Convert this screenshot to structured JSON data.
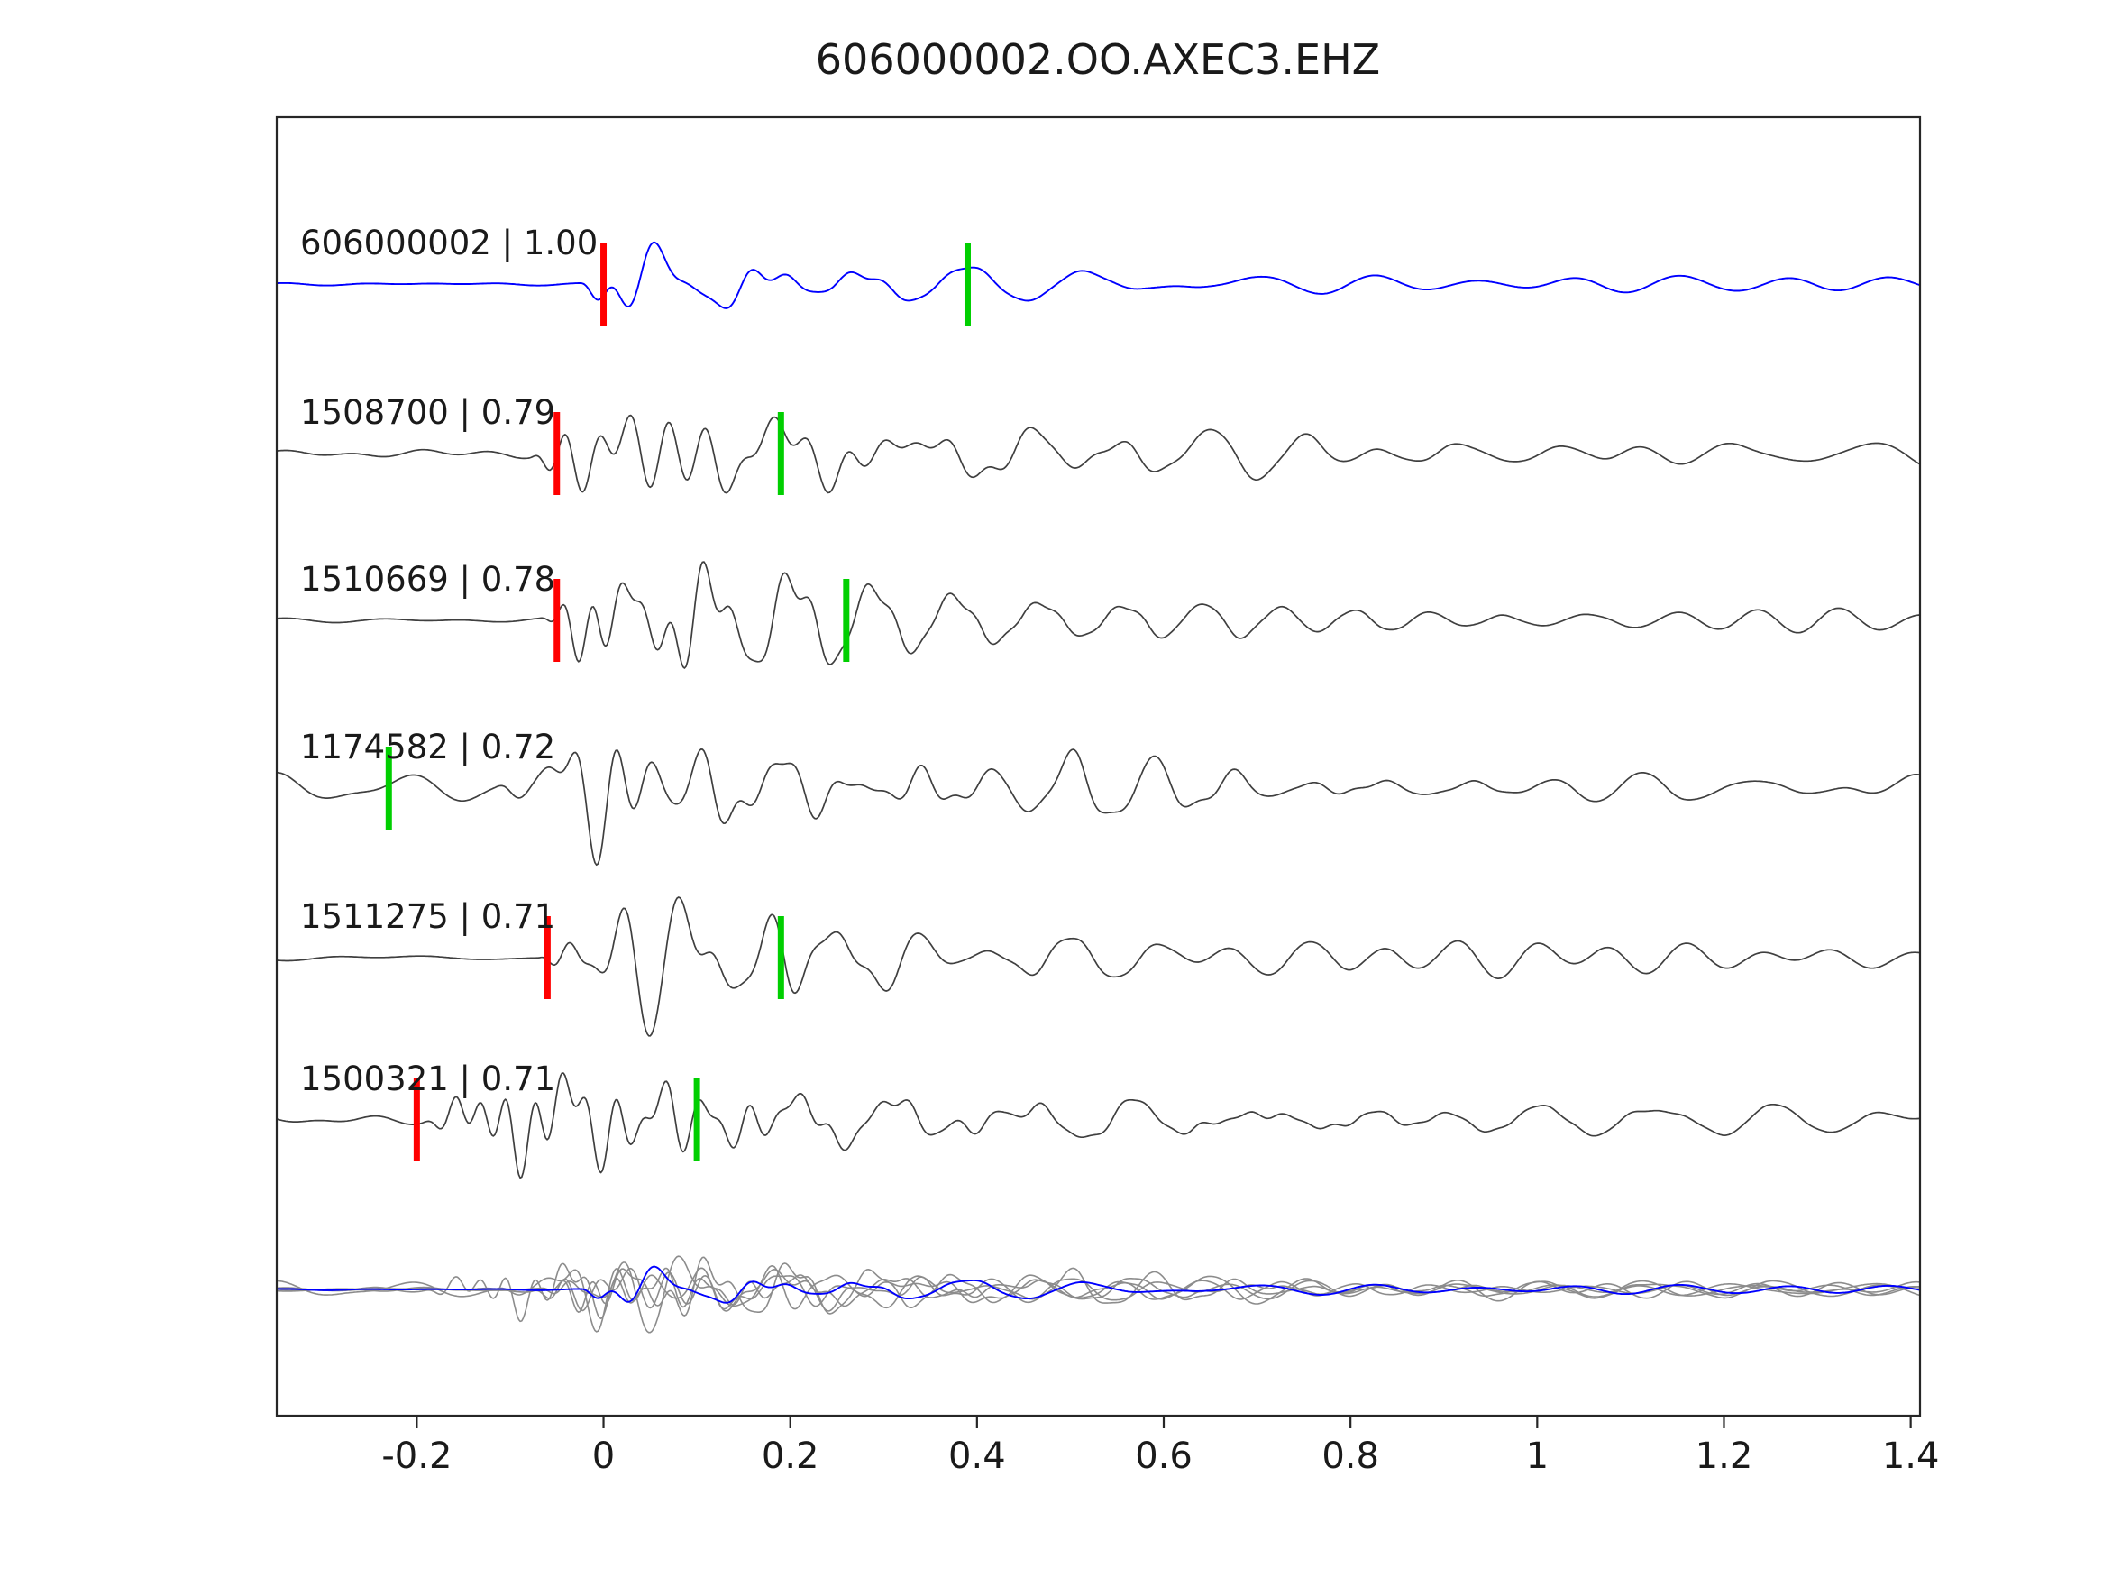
{
  "title": "606000002.OO.AXEC3.EHZ",
  "chart_data": {
    "type": "line",
    "title": "606000002.OO.AXEC3.EHZ",
    "xlabel": "",
    "ylabel": "",
    "x_range": [
      -0.35,
      1.41
    ],
    "x_ticks": [
      {
        "value": -0.2,
        "label": "-0.2"
      },
      {
        "value": 0,
        "label": "0"
      },
      {
        "value": 0.2,
        "label": "0.2"
      },
      {
        "value": 0.4,
        "label": "0.4"
      },
      {
        "value": 0.6,
        "label": "0.6"
      },
      {
        "value": 0.8,
        "label": "0.8"
      },
      {
        "value": 1,
        "label": "1"
      },
      {
        "value": 1.2,
        "label": "1.2"
      },
      {
        "value": 1.4,
        "label": "1.4"
      }
    ],
    "grid": false,
    "legend_position": "none",
    "colors": {
      "template_trace": "#0000ff",
      "candidate_trace": "#3f3f3f",
      "overlay_gray": "#8c8c8c",
      "pick_red": "#ff0000",
      "pick_green": "#00cf00",
      "axis": "#262626"
    },
    "traces": [
      {
        "id": "606000002",
        "label": "606000002 | 1.00",
        "similarity": "1.00",
        "color": "#0000ff",
        "row": 0,
        "picks": {
          "red": 0.0,
          "green": 0.39
        },
        "waveform": {
          "seed": 101,
          "onset": -0.025,
          "rise": 0.022,
          "decay": 0.12,
          "coda": 0.11,
          "pre": 0.025,
          "amp": 68
        }
      },
      {
        "id": "1508700",
        "label": "1508700 | 0.79",
        "similarity": "0.79",
        "color": "#3f3f3f",
        "row": 1,
        "picks": {
          "red": -0.05,
          "green": 0.19
        },
        "waveform": {
          "seed": 202,
          "onset": -0.08,
          "rise": 0.035,
          "decay": 0.22,
          "coda": 0.13,
          "pre": 0.05,
          "amp": 112
        }
      },
      {
        "id": "1510669",
        "label": "1510669 | 0.78",
        "similarity": "0.78",
        "color": "#3f3f3f",
        "row": 2,
        "picks": {
          "red": -0.05,
          "green": 0.26
        },
        "waveform": {
          "seed": 303,
          "onset": -0.07,
          "rise": 0.04,
          "decay": 0.2,
          "coda": 0.13,
          "pre": 0.04,
          "amp": 112
        }
      },
      {
        "id": "1174582",
        "label": "1174582 | 0.72",
        "similarity": "0.72",
        "color": "#3f3f3f",
        "row": 3,
        "picks": {
          "green": -0.23
        },
        "waveform": {
          "seed": 404,
          "onset": -0.12,
          "rise": 0.06,
          "decay": 0.28,
          "coda": 0.13,
          "pre": 0.16,
          "amp": 115
        }
      },
      {
        "id": "1511275",
        "label": "1511275 | 0.71",
        "similarity": "0.71",
        "color": "#3f3f3f",
        "row": 4,
        "picks": {
          "red": -0.06,
          "green": 0.19
        },
        "waveform": {
          "seed": 505,
          "onset": -0.07,
          "rise": 0.035,
          "decay": 0.2,
          "coda": 0.12,
          "pre": 0.04,
          "amp": 108
        }
      },
      {
        "id": "1500321",
        "label": "1500321 | 0.71",
        "similarity": "0.71",
        "color": "#3f3f3f",
        "row": 5,
        "picks": {
          "red": -0.2,
          "green": 0.1
        },
        "waveform": {
          "seed": 606,
          "onset": -0.2,
          "rise": 0.07,
          "decay": 0.3,
          "coda": 0.12,
          "pre": 0.06,
          "amp": 112
        }
      }
    ],
    "overlay_row": {
      "row": 6,
      "description": "All candidate traces superimposed in gray with the template trace 606000002 overlaid in blue",
      "scale": 0.55
    }
  }
}
